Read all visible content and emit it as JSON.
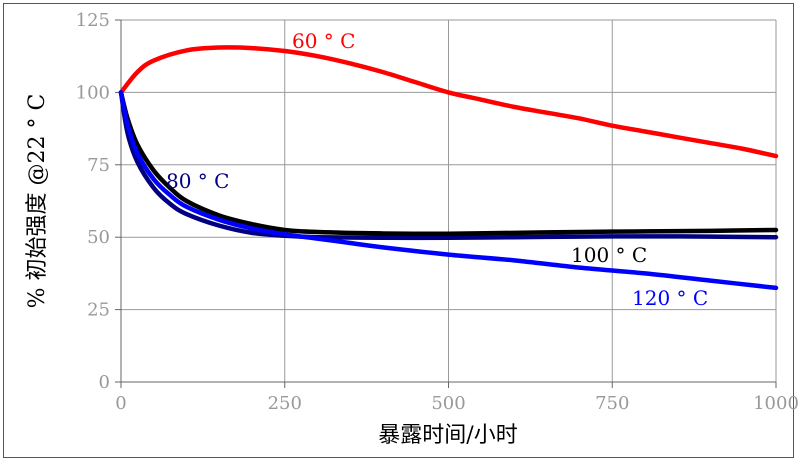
{
  "chart_data": {
    "type": "line",
    "xlabel": "暴露时间/小时",
    "ylabel": "% 初始强度  @22 ° C",
    "xlim": [
      0,
      1000
    ],
    "ylim": [
      0,
      125
    ],
    "x_ticks": [
      0,
      250,
      500,
      750,
      1000
    ],
    "y_ticks": [
      0,
      25,
      50,
      75,
      100,
      125
    ],
    "grid": true,
    "series": [
      {
        "name": "60 ° C",
        "color": "#ff0000",
        "label_color": "#ff0000",
        "x": [
          0,
          25,
          50,
          100,
          150,
          200,
          250,
          300,
          350,
          400,
          450,
          500,
          550,
          600,
          650,
          700,
          750,
          800,
          850,
          900,
          950,
          1000
        ],
        "y": [
          100,
          107,
          111,
          114.5,
          115.5,
          115.3,
          114.3,
          112.5,
          110,
          107,
          103.5,
          100,
          97.5,
          95,
          93,
          91,
          88.5,
          86.5,
          84.5,
          82.5,
          80.5,
          78
        ]
      },
      {
        "name": "80 ° C",
        "color": "#000080",
        "label_color": "#000080",
        "x": [
          0,
          10,
          25,
          50,
          75,
          100,
          150,
          200,
          250,
          300,
          400,
          500,
          600,
          700,
          800,
          900,
          1000
        ],
        "y": [
          100,
          86,
          76,
          67,
          61.5,
          58,
          54,
          51.5,
          50.5,
          50,
          49.8,
          49.8,
          50,
          50.2,
          50.3,
          50.2,
          50
        ]
      },
      {
        "name": "100 ° C",
        "color": "#000000",
        "label_color": "#000000",
        "x": [
          0,
          10,
          25,
          50,
          75,
          100,
          150,
          200,
          250,
          300,
          400,
          500,
          600,
          700,
          800,
          900,
          1000
        ],
        "y": [
          100,
          91,
          82,
          73,
          67,
          62.5,
          57.5,
          54.5,
          52.5,
          51.8,
          51.3,
          51.2,
          51.5,
          51.8,
          52,
          52.2,
          52.5
        ]
      },
      {
        "name": "120 ° C",
        "color": "#0000ff",
        "label_color": "#0000ff",
        "x": [
          0,
          10,
          25,
          50,
          75,
          100,
          150,
          200,
          250,
          300,
          350,
          400,
          500,
          600,
          700,
          800,
          900,
          1000
        ],
        "y": [
          100,
          89,
          79,
          70,
          64.5,
          60.5,
          56,
          53,
          51,
          49.5,
          48,
          46.5,
          44,
          42,
          39.5,
          37.5,
          35,
          32.5
        ]
      }
    ]
  }
}
